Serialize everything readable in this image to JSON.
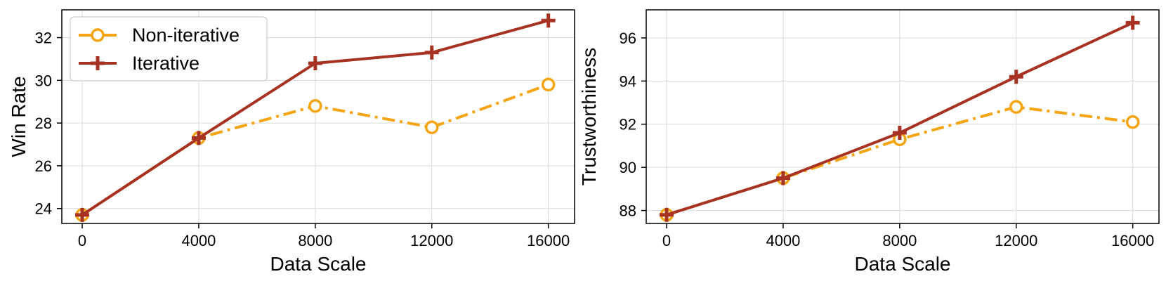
{
  "chart_data": [
    {
      "type": "line",
      "title": "",
      "xlabel": "Data Scale",
      "ylabel": "Win Rate",
      "x": [
        0,
        4000,
        8000,
        12000,
        16000
      ],
      "xticks": [
        "0",
        "4000",
        "8000",
        "12000",
        "16000"
      ],
      "yticks": [
        "24",
        "26",
        "28",
        "30",
        "32"
      ],
      "xlim": [
        -700,
        16900
      ],
      "ylim": [
        23.3,
        33.3
      ],
      "grid": true,
      "legend": {
        "position": "top-left"
      },
      "series": [
        {
          "name": "Non-iterative",
          "values": [
            23.7,
            27.3,
            28.8,
            27.8,
            29.8
          ],
          "color": "#f5a512",
          "linestyle": "dash-dot",
          "marker": "open-circle"
        },
        {
          "name": "Iterative",
          "values": [
            23.7,
            27.3,
            30.8,
            31.3,
            32.8
          ],
          "color": "#a83222",
          "linestyle": "solid",
          "marker": "plus"
        }
      ]
    },
    {
      "type": "line",
      "title": "",
      "xlabel": "Data Scale",
      "ylabel": "Trustworthiness",
      "x": [
        0,
        4000,
        8000,
        12000,
        16000
      ],
      "xticks": [
        "0",
        "4000",
        "8000",
        "12000",
        "16000"
      ],
      "yticks": [
        "88",
        "90",
        "92",
        "94",
        "96"
      ],
      "xlim": [
        -700,
        16900
      ],
      "ylim": [
        87.4,
        97.3
      ],
      "grid": true,
      "legend": null,
      "series": [
        {
          "name": "Non-iterative",
          "values": [
            87.8,
            89.5,
            91.3,
            92.8,
            92.1
          ],
          "color": "#f5a512",
          "linestyle": "dash-dot",
          "marker": "open-circle"
        },
        {
          "name": "Iterative",
          "values": [
            87.8,
            89.5,
            91.6,
            94.2,
            96.7
          ],
          "color": "#a83222",
          "linestyle": "solid",
          "marker": "plus"
        }
      ]
    }
  ]
}
